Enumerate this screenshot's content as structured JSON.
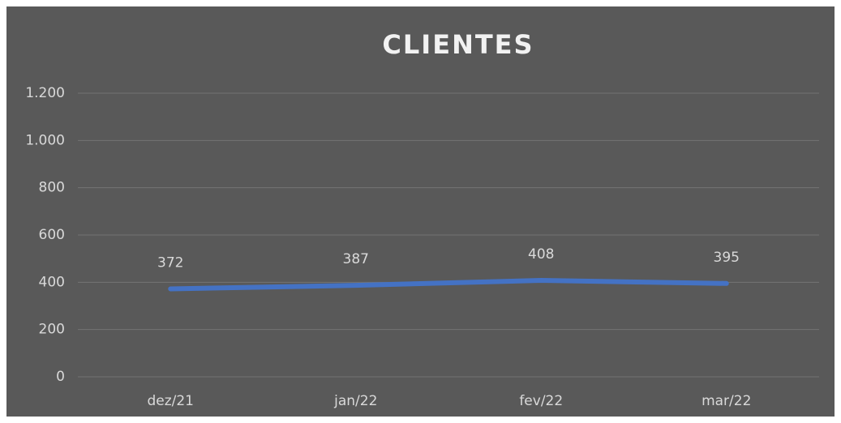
{
  "chart_data": {
    "type": "line",
    "title": "CLIENTES",
    "categories": [
      "dez/21",
      "jan/22",
      "fev/22",
      "mar/22"
    ],
    "series": [
      {
        "name": "Clientes",
        "color": "#4472c4",
        "values": [
          372,
          387,
          408,
          395
        ]
      }
    ],
    "ylim": [
      0,
      1200
    ],
    "yticks": [
      0,
      200,
      400,
      600,
      800,
      {
        "value": 1000,
        "label": "1.000"
      },
      {
        "value": 1200,
        "label": "1.200"
      }
    ],
    "grid": true
  }
}
